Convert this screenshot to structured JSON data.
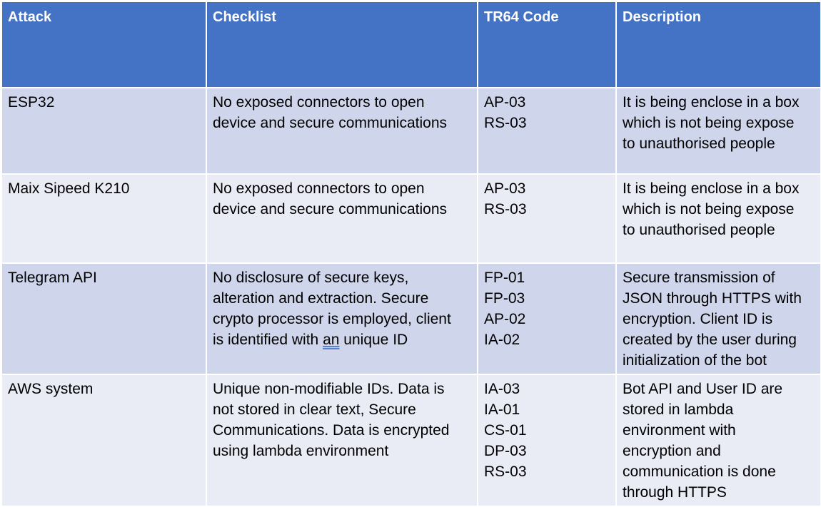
{
  "table": {
    "headers": {
      "attack": "Attack",
      "checklist": "Checklist",
      "tr64_code": "TR64 Code",
      "description": "Description"
    },
    "rows": [
      {
        "attack": "ESP32",
        "checklist_lines": [
          "No exposed connectors to open",
          "device and secure communications"
        ],
        "codes": [
          "AP-03",
          "RS-03"
        ],
        "description_lines": [
          "It is being enclose in a box",
          "which is not being expose",
          "to unauthorised people"
        ]
      },
      {
        "attack": "Maix Sipeed K210",
        "checklist_lines": [
          "No exposed connectors to open",
          "device and secure communications"
        ],
        "codes": [
          "AP-03",
          "RS-03"
        ],
        "description_lines": [
          "It is being enclose in a box",
          "which is not being expose",
          "to unauthorised people"
        ]
      },
      {
        "attack": "Telegram API",
        "checklist_lines": [
          "No disclosure of secure keys,",
          "alteration and extraction. Secure",
          "crypto processor is employed, client",
          "is identified with",
          "an",
          "unique ID"
        ],
        "codes": [
          "FP-01",
          "FP-03",
          "AP-02",
          "IA-02"
        ],
        "description_lines": [
          "Secure transmission of",
          "JSON through HTTPS with",
          "encryption. Client ID is",
          "created by the user during",
          "initialization of the bot"
        ]
      },
      {
        "attack": "AWS system",
        "checklist_lines": [
          "Unique non-modifiable IDs. Data is",
          "not stored in clear text, Secure",
          "Communications. Data is encrypted",
          "using lambda environment"
        ],
        "codes": [
          "IA-03",
          "IA-01",
          "CS-01",
          "DP-03",
          "RS-03"
        ],
        "description_lines": [
          "Bot API and User ID are",
          "stored in lambda",
          "environment with",
          "encryption and",
          "communication is done",
          "through HTTPS"
        ]
      }
    ]
  }
}
